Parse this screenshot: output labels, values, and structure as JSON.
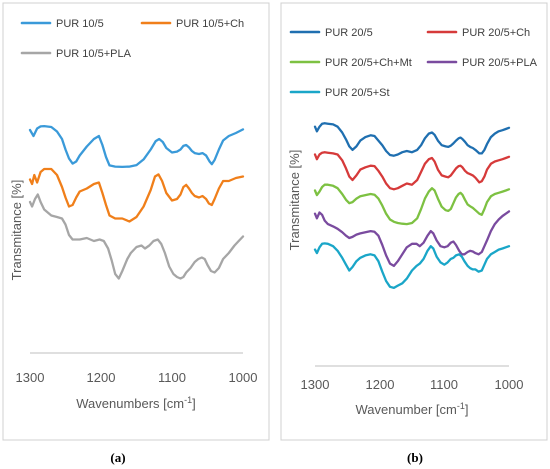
{
  "panel_captions": [
    "(a)",
    "(b)"
  ],
  "chart_data": [
    {
      "type": "line",
      "caption": "(a)",
      "xlabel": "Wavenumbers [cm",
      "xlabel_sup": "-1",
      "xlabel_end": "]",
      "ylabel": "Transmitance [%]",
      "xlim": [
        1300,
        1000
      ],
      "x_reversed": true,
      "xticks": [
        "1300",
        "1200",
        "1100",
        "1000"
      ],
      "yticks_shown": false,
      "legend_position": "top",
      "series": [
        {
          "name": "PUR 10/5",
          "color": "#3a9ad9",
          "x": [
            1300,
            1295,
            1290,
            1285,
            1280,
            1270,
            1262,
            1255,
            1250,
            1245,
            1240,
            1235,
            1230,
            1220,
            1210,
            1203,
            1198,
            1193,
            1188,
            1180,
            1170,
            1160,
            1150,
            1140,
            1130,
            1123,
            1118,
            1113,
            1108,
            1100,
            1093,
            1088,
            1084,
            1080,
            1076,
            1072,
            1068,
            1062,
            1057,
            1052,
            1047,
            1044,
            1040,
            1034,
            1028,
            1020,
            1010,
            1000
          ],
          "y": [
            12.0,
            10.0,
            12.5,
            13.2,
            13.3,
            13.0,
            11.5,
            9.0,
            5.5,
            2.5,
            0.8,
            1.5,
            3.5,
            6.5,
            9.0,
            10.0,
            7.0,
            3.0,
            0.2,
            -0.2,
            -0.3,
            -0.2,
            0.3,
            2.2,
            5.5,
            8.3,
            9.0,
            8.0,
            6.0,
            4.5,
            4.8,
            5.5,
            6.7,
            7.0,
            6.2,
            5.0,
            4.3,
            4.0,
            4.3,
            3.5,
            1.5,
            0.6,
            2.0,
            5.5,
            8.5,
            10.0,
            11.0,
            12.2
          ]
        },
        {
          "name": "PUR 10/5+Ch",
          "color": "#f07f1a",
          "x": [
            1300,
            1297,
            1294,
            1290,
            1285,
            1280,
            1270,
            1262,
            1255,
            1250,
            1245,
            1240,
            1235,
            1230,
            1220,
            1210,
            1203,
            1198,
            1193,
            1188,
            1180,
            1170,
            1160,
            1150,
            1140,
            1130,
            1124,
            1119,
            1114,
            1108,
            1100,
            1093,
            1088,
            1084,
            1080,
            1076,
            1072,
            1068,
            1062,
            1057,
            1052,
            1048,
            1044,
            1040,
            1034,
            1028,
            1020,
            1010,
            1000
          ],
          "y": [
            -4.5,
            -6.0,
            -3.0,
            -5.5,
            -2.0,
            -1.0,
            -1.0,
            -3.0,
            -7.0,
            -10.5,
            -13.5,
            -13.0,
            -10.5,
            -8.5,
            -7.5,
            -6.0,
            -5.5,
            -9.0,
            -13.0,
            -16.5,
            -17.5,
            -17.5,
            -18.5,
            -17.0,
            -13.5,
            -8.0,
            -3.5,
            -2.8,
            -5.0,
            -9.0,
            -11.5,
            -11.0,
            -9.5,
            -7.0,
            -6.3,
            -7.5,
            -9.0,
            -10.0,
            -10.5,
            -10.0,
            -11.0,
            -12.5,
            -13.0,
            -11.0,
            -7.5,
            -5.0,
            -5.0,
            -4.0,
            -3.5
          ]
        },
        {
          "name": "PUR 10/5+PLA",
          "color": "#a6a6a6",
          "x": [
            1300,
            1297,
            1293,
            1289,
            1285,
            1280,
            1270,
            1262,
            1255,
            1250,
            1245,
            1240,
            1230,
            1220,
            1210,
            1202,
            1196,
            1190,
            1185,
            1180,
            1175,
            1170,
            1163,
            1158,
            1150,
            1143,
            1138,
            1132,
            1126,
            1120,
            1115,
            1110,
            1104,
            1098,
            1093,
            1088,
            1084,
            1080,
            1074,
            1068,
            1063,
            1058,
            1054,
            1050,
            1045,
            1040,
            1034,
            1028,
            1020,
            1012,
            1006,
            1000
          ],
          "y": [
            -12.0,
            -13.5,
            -11.0,
            -9.5,
            -12.0,
            -14.5,
            -16.5,
            -17.0,
            -17.5,
            -19.5,
            -23.0,
            -24.5,
            -24.5,
            -24.0,
            -25.0,
            -24.5,
            -25.0,
            -27.5,
            -31.5,
            -36.0,
            -37.5,
            -35.0,
            -31.0,
            -29.0,
            -27.0,
            -26.5,
            -27.5,
            -26.5,
            -25.0,
            -24.5,
            -26.0,
            -29.0,
            -33.5,
            -36.0,
            -37.0,
            -37.5,
            -37.0,
            -35.5,
            -34.0,
            -32.0,
            -31.0,
            -30.5,
            -31.0,
            -33.0,
            -35.0,
            -35.5,
            -34.0,
            -31.0,
            -29.0,
            -26.5,
            -25.0,
            -23.5
          ]
        }
      ]
    },
    {
      "type": "line",
      "caption": "(b)",
      "xlabel": "Wavenumber [cm",
      "xlabel_sup": "-1",
      "xlabel_end": "]",
      "ylabel": "Transmitance [%]",
      "xlim": [
        1300,
        1000
      ],
      "x_reversed": true,
      "xticks": [
        "1300",
        "1200",
        "1100",
        "1000"
      ],
      "yticks_shown": false,
      "legend_position": "top",
      "series": [
        {
          "name": "PUR 20/5",
          "color": "#1f6fb0",
          "x": [
            1300,
            1297,
            1293,
            1289,
            1285,
            1280,
            1272,
            1265,
            1258,
            1252,
            1247,
            1242,
            1236,
            1230,
            1222,
            1214,
            1208,
            1202,
            1196,
            1190,
            1184,
            1178,
            1172,
            1165,
            1158,
            1150,
            1142,
            1136,
            1130,
            1124,
            1119,
            1115,
            1110,
            1104,
            1098,
            1094,
            1090,
            1086,
            1082,
            1078,
            1075,
            1072,
            1068,
            1064,
            1060,
            1056,
            1052,
            1046,
            1042,
            1038,
            1034,
            1028,
            1022,
            1016,
            1010,
            1005,
            1000
          ],
          "y": [
            13.5,
            11.5,
            13.5,
            14.8,
            15.0,
            14.8,
            14.5,
            13.5,
            11.0,
            8.0,
            5.0,
            3.5,
            5.0,
            7.5,
            9.0,
            9.8,
            9.5,
            7.5,
            5.5,
            3.0,
            1.3,
            1.0,
            1.5,
            2.5,
            3.0,
            2.5,
            3.5,
            5.5,
            8.5,
            10.5,
            11.0,
            10.0,
            7.5,
            5.5,
            5.0,
            4.8,
            5.3,
            6.3,
            7.5,
            8.5,
            8.8,
            8.2,
            7.0,
            5.5,
            4.8,
            4.3,
            3.5,
            2.0,
            2.0,
            3.5,
            6.0,
            9.0,
            10.5,
            11.5,
            12.0,
            12.5,
            13.0
          ]
        },
        {
          "name": "PUR 20/5+Ch",
          "color": "#d63a3a",
          "x": [
            1300,
            1297,
            1293,
            1289,
            1285,
            1280,
            1272,
            1265,
            1258,
            1252,
            1247,
            1242,
            1236,
            1230,
            1222,
            1214,
            1208,
            1202,
            1196,
            1190,
            1184,
            1178,
            1172,
            1165,
            1158,
            1150,
            1142,
            1136,
            1130,
            1124,
            1119,
            1115,
            1110,
            1104,
            1098,
            1094,
            1090,
            1086,
            1082,
            1078,
            1075,
            1072,
            1068,
            1064,
            1060,
            1056,
            1052,
            1046,
            1042,
            1038,
            1034,
            1028,
            1022,
            1016,
            1010,
            1005,
            1000
          ],
          "y": [
            1.5,
            -0.5,
            1.5,
            2.3,
            2.5,
            2.3,
            2.0,
            1.5,
            -1.0,
            -4.5,
            -8.0,
            -9.5,
            -7.5,
            -5.0,
            -4.0,
            -3.3,
            -3.5,
            -5.5,
            -8.0,
            -11.0,
            -13.0,
            -13.5,
            -13.0,
            -12.0,
            -11.0,
            -11.5,
            -9.5,
            -6.0,
            -2.5,
            -0.5,
            0.0,
            -1.5,
            -5.0,
            -7.5,
            -8.0,
            -8.3,
            -7.5,
            -6.0,
            -4.5,
            -3.5,
            -3.3,
            -4.0,
            -5.5,
            -6.5,
            -7.0,
            -7.5,
            -8.5,
            -10.5,
            -10.0,
            -8.0,
            -5.0,
            -2.5,
            -1.5,
            -1.0,
            -0.5,
            0.0,
            0.5
          ]
        },
        {
          "name": "PUR 20/5+Ch+Mt",
          "color": "#7dc142",
          "x": [
            1300,
            1297,
            1293,
            1289,
            1285,
            1280,
            1272,
            1265,
            1258,
            1252,
            1247,
            1242,
            1236,
            1230,
            1222,
            1214,
            1208,
            1202,
            1196,
            1190,
            1184,
            1178,
            1172,
            1165,
            1158,
            1150,
            1142,
            1136,
            1130,
            1124,
            1119,
            1115,
            1110,
            1104,
            1098,
            1094,
            1090,
            1086,
            1082,
            1078,
            1075,
            1072,
            1068,
            1064,
            1060,
            1056,
            1052,
            1046,
            1042,
            1038,
            1034,
            1028,
            1022,
            1016,
            1010,
            1005,
            1000
          ],
          "y": [
            -14.0,
            -16.0,
            -14.5,
            -12.5,
            -11.5,
            -11.5,
            -12.0,
            -13.0,
            -15.5,
            -18.0,
            -19.5,
            -19.0,
            -17.5,
            -16.5,
            -16.0,
            -15.5,
            -15.8,
            -17.5,
            -20.5,
            -24.0,
            -26.5,
            -27.5,
            -28.0,
            -28.3,
            -28.5,
            -28.0,
            -26.0,
            -22.0,
            -17.5,
            -14.5,
            -13.0,
            -14.0,
            -17.5,
            -21.0,
            -22.5,
            -22.8,
            -22.0,
            -19.5,
            -17.0,
            -15.5,
            -15.0,
            -15.8,
            -18.0,
            -20.0,
            -20.8,
            -21.5,
            -22.5,
            -24.0,
            -24.5,
            -22.0,
            -19.0,
            -16.5,
            -15.5,
            -15.0,
            -14.5,
            -14.0,
            -13.5
          ]
        },
        {
          "name": "PUR 20/5+PLA",
          "color": "#7a4b9f",
          "x": [
            1300,
            1297,
            1293,
            1289,
            1285,
            1280,
            1272,
            1265,
            1258,
            1252,
            1247,
            1242,
            1236,
            1230,
            1222,
            1214,
            1208,
            1202,
            1196,
            1190,
            1184,
            1178,
            1172,
            1165,
            1158,
            1150,
            1143,
            1138,
            1132,
            1126,
            1121,
            1117,
            1112,
            1106,
            1100,
            1095,
            1090,
            1086,
            1082,
            1077,
            1073,
            1069,
            1064,
            1060,
            1056,
            1052,
            1047,
            1042,
            1038,
            1034,
            1028,
            1022,
            1016,
            1010,
            1005,
            1000
          ],
          "y": [
            -24.0,
            -26.0,
            -23.5,
            -24.5,
            -27.0,
            -28.5,
            -29.5,
            -30.5,
            -32.0,
            -33.5,
            -34.5,
            -34.0,
            -33.0,
            -32.5,
            -32.0,
            -31.5,
            -31.8,
            -33.5,
            -37.5,
            -42.0,
            -45.5,
            -46.5,
            -44.5,
            -41.5,
            -38.5,
            -37.0,
            -37.0,
            -38.0,
            -36.5,
            -33.5,
            -31.5,
            -32.5,
            -35.5,
            -38.0,
            -38.5,
            -38.0,
            -36.5,
            -36.0,
            -37.5,
            -40.0,
            -41.5,
            -41.5,
            -40.5,
            -40.0,
            -40.3,
            -41.0,
            -41.5,
            -40.5,
            -38.0,
            -35.5,
            -31.5,
            -28.5,
            -26.5,
            -25.0,
            -24.0,
            -23.0
          ]
        },
        {
          "name": "PUR 20/5+St",
          "color": "#1aa6c8",
          "x": [
            1300,
            1297,
            1293,
            1289,
            1285,
            1280,
            1272,
            1265,
            1258,
            1252,
            1247,
            1242,
            1236,
            1230,
            1222,
            1214,
            1208,
            1202,
            1196,
            1190,
            1184,
            1178,
            1172,
            1165,
            1158,
            1150,
            1143,
            1138,
            1132,
            1126,
            1121,
            1117,
            1112,
            1106,
            1100,
            1095,
            1090,
            1086,
            1082,
            1077,
            1073,
            1069,
            1064,
            1060,
            1056,
            1052,
            1047,
            1042,
            1038,
            1034,
            1028,
            1022,
            1016,
            1010,
            1005,
            1000
          ],
          "y": [
            -39.5,
            -41.0,
            -38.5,
            -37.0,
            -36.8,
            -37.0,
            -38.0,
            -40.0,
            -43.0,
            -46.0,
            -48.5,
            -47.0,
            -44.5,
            -43.0,
            -42.0,
            -41.5,
            -42.0,
            -44.5,
            -49.0,
            -53.0,
            -55.5,
            -56.0,
            -55.0,
            -54.0,
            -52.0,
            -48.5,
            -46.5,
            -45.5,
            -43.5,
            -40.0,
            -38.0,
            -39.0,
            -42.5,
            -45.0,
            -46.0,
            -45.0,
            -43.5,
            -43.0,
            -42.0,
            -41.5,
            -42.5,
            -44.5,
            -46.5,
            -47.5,
            -48.0,
            -48.0,
            -49.0,
            -48.5,
            -46.0,
            -43.5,
            -41.5,
            -40.5,
            -39.5,
            -39.0,
            -38.5,
            -38.0
          ]
        }
      ]
    }
  ]
}
